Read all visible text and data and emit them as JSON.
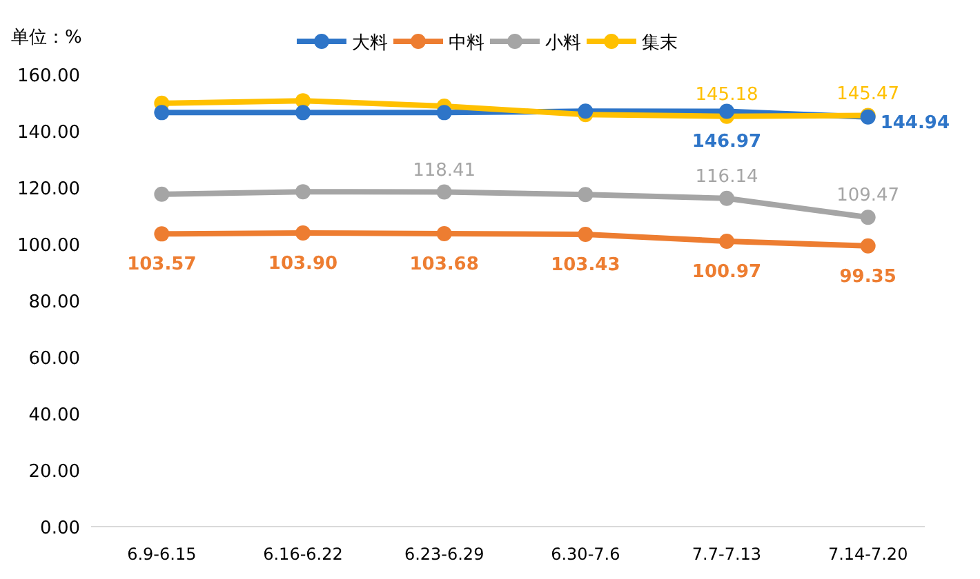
{
  "chart_data": {
    "type": "line",
    "ylabel": "单位：%",
    "categories": [
      "6.9-6.15",
      "6.16-6.22",
      "6.23-6.29",
      "6.30-7.6",
      "7.7-7.13",
      "7.14-7.20"
    ],
    "series": [
      {
        "name": "大料",
        "color": "#2e75c8",
        "values": [
          146.5,
          146.5,
          146.5,
          147.0,
          146.97,
          144.94
        ],
        "value_labels": [
          null,
          null,
          null,
          null,
          "146.97",
          "144.94"
        ]
      },
      {
        "name": "中料",
        "color": "#ed7d31",
        "values": [
          103.57,
          103.9,
          103.68,
          103.43,
          100.97,
          99.35
        ],
        "value_labels": [
          "103.57",
          "103.90",
          "103.68",
          "103.43",
          "100.97",
          "99.35"
        ]
      },
      {
        "name": "小料",
        "color": "#a5a5a5",
        "values": [
          117.6,
          118.5,
          118.41,
          117.5,
          116.14,
          109.47
        ],
        "value_labels": [
          null,
          null,
          "118.41",
          null,
          "116.14",
          "109.47"
        ]
      },
      {
        "name": "集末",
        "color": "#ffc000",
        "values": [
          149.8,
          150.7,
          148.8,
          145.8,
          145.18,
          145.47
        ],
        "value_labels": [
          null,
          null,
          null,
          null,
          "145.18",
          "145.47"
        ]
      }
    ],
    "ylim": [
      0,
      160
    ],
    "yticks": [
      {
        "value": 0,
        "label": "0.00"
      },
      {
        "value": 20,
        "label": "20.00"
      },
      {
        "value": 40,
        "label": "40.00"
      },
      {
        "value": 60,
        "label": "60.00"
      },
      {
        "value": 80,
        "label": "80.00"
      },
      {
        "value": 100,
        "label": "100.00"
      },
      {
        "value": 120,
        "label": "120.00"
      },
      {
        "value": 140,
        "label": "140.00"
      },
      {
        "value": 160,
        "label": "160.00"
      }
    ],
    "legend": "top",
    "marker": "circle",
    "grid": false
  }
}
